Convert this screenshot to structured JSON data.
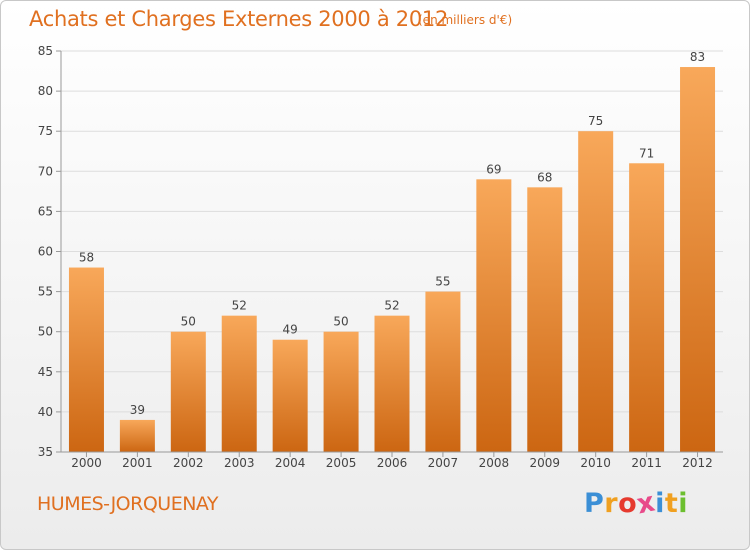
{
  "header": {
    "title": "Achats et Charges Externes 2000 à 2012",
    "unit_note": "(en milliers d'€)"
  },
  "footer": {
    "commune": "HUMES-JORQUENAY",
    "logo_letters": [
      "P",
      "r",
      "o",
      "x",
      "i",
      "t",
      "i"
    ],
    "logo_colors": [
      "#3b8fd6",
      "#f0a020",
      "#e63a2e",
      "#e84a8a",
      "#3b8fd6",
      "#f0a020",
      "#6cbf2f"
    ]
  },
  "colors": {
    "accent": "#e07020",
    "bar_top": "#f8a85a",
    "bar_bottom": "#cc6612",
    "axis": "#999999",
    "grid": "#dddddd",
    "label": "#444444"
  },
  "chart_data": {
    "type": "bar",
    "title": "Achats et Charges Externes 2000 à 2012",
    "subtitle": "(en milliers d'€)",
    "categories": [
      "2000",
      "2001",
      "2002",
      "2003",
      "2004",
      "2005",
      "2006",
      "2007",
      "2008",
      "2009",
      "2010",
      "2011",
      "2012"
    ],
    "values": [
      58,
      39,
      50,
      52,
      49,
      50,
      52,
      55,
      69,
      68,
      75,
      71,
      83
    ],
    "ylim": [
      35,
      85
    ],
    "yticks": [
      35,
      40,
      45,
      50,
      55,
      60,
      65,
      70,
      75,
      80,
      85
    ],
    "grid": true,
    "xlabel": "",
    "ylabel": ""
  }
}
